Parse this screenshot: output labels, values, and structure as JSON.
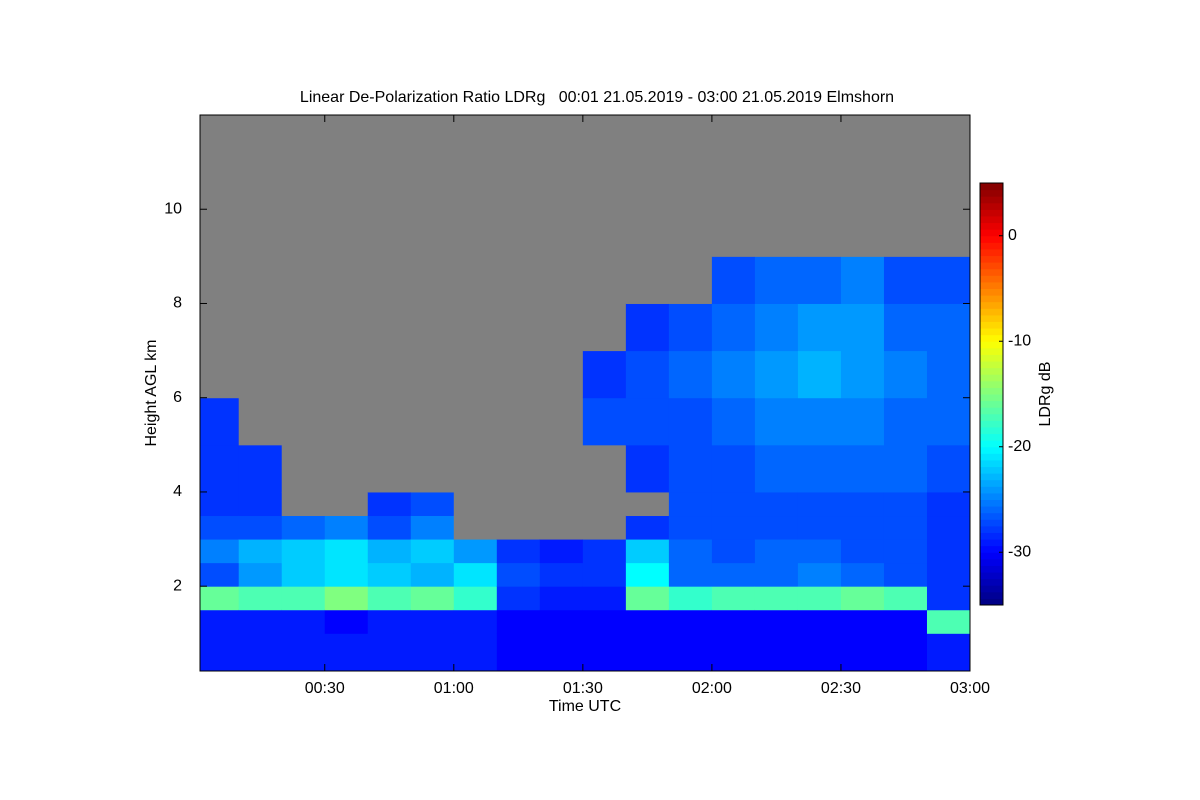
{
  "chart_data": {
    "type": "heatmap",
    "title": "Linear De-Polarization Ratio LDRg   00:01 21.05.2019 - 03:00 21.05.2019 Elmshorn",
    "x_label": "Time UTC",
    "y_label": "Height AGL km",
    "colorbar_label": "LDRg dB",
    "colormap": "jet",
    "missing_color": "#808080",
    "x_bins": [
      1,
      10,
      20,
      30,
      40,
      50,
      60,
      70,
      80,
      90,
      100,
      110,
      120,
      130,
      140,
      150,
      160,
      170,
      180
    ],
    "y_bins": [
      0.2,
      1,
      1.5,
      2,
      2.5,
      3,
      3.5,
      4,
      5,
      6,
      7,
      8,
      9,
      12
    ],
    "values": [
      [
        -29,
        -29,
        -16,
        -27,
        -25,
        -27,
        -28,
        -28,
        -28,
        null,
        null,
        null,
        null
      ],
      [
        -29,
        -29,
        -17,
        -24,
        -23,
        -27,
        -28,
        -28,
        null,
        null,
        null,
        null,
        null
      ],
      [
        -29,
        -29,
        -17,
        -22,
        -22,
        -26,
        null,
        null,
        null,
        null,
        null,
        null,
        null
      ],
      [
        -29,
        -30,
        -15,
        -21,
        -21,
        -25,
        null,
        null,
        null,
        null,
        null,
        null,
        null
      ],
      [
        -29,
        -29,
        -17,
        -22,
        -23,
        -27,
        -28,
        null,
        null,
        null,
        null,
        null,
        null
      ],
      [
        -29,
        -29,
        -16,
        -23,
        -22,
        -25,
        -27,
        null,
        null,
        null,
        null,
        null,
        null
      ],
      [
        -29,
        -29,
        -18,
        -21,
        -24,
        null,
        null,
        null,
        null,
        null,
        null,
        null,
        null
      ],
      [
        -30,
        -30,
        -28,
        -27,
        -28,
        null,
        null,
        null,
        null,
        null,
        null,
        null,
        null
      ],
      [
        -30,
        -30,
        -29,
        -28,
        -29,
        null,
        null,
        null,
        null,
        null,
        null,
        null,
        null
      ],
      [
        -30,
        -30,
        -29,
        -28,
        -28,
        null,
        null,
        null,
        -27,
        -28,
        null,
        null,
        null
      ],
      [
        -30,
        -30,
        -16,
        -20,
        -22,
        -28,
        null,
        -28,
        -27,
        -27,
        -28,
        null,
        null
      ],
      [
        -30,
        -30,
        -18,
        -26,
        -26,
        -27,
        -27,
        -27,
        -27,
        -26,
        -27,
        null,
        null
      ],
      [
        -30,
        -30,
        -17,
        -26,
        -27,
        -27,
        -27,
        -27,
        -26,
        -25,
        -26,
        -27,
        null
      ],
      [
        -30,
        -30,
        -17,
        -26,
        -26,
        -27,
        -27,
        -26,
        -25,
        -24,
        -25,
        -26,
        null
      ],
      [
        -30,
        -30,
        -17,
        -25,
        -26,
        -27,
        -27,
        -26,
        -25,
        -23,
        -24,
        -26,
        null
      ],
      [
        -30,
        -30,
        -16,
        -26,
        -27,
        -27,
        -27,
        -26,
        -25,
        -24,
        -24,
        -25,
        null
      ],
      [
        -30,
        -30,
        -17,
        -27,
        -27,
        -27,
        -27,
        -26,
        -26,
        -25,
        -26,
        -27,
        null
      ],
      [
        -29,
        -17,
        -28,
        -28,
        -28,
        -28,
        -28,
        -27,
        -26,
        -26,
        -26,
        -27,
        null
      ]
    ],
    "xlim": [
      1,
      180
    ],
    "xticks": [
      {
        "value": 30,
        "label": "00:30"
      },
      {
        "value": 60,
        "label": "01:00"
      },
      {
        "value": 90,
        "label": "01:30"
      },
      {
        "value": 120,
        "label": "02:00"
      },
      {
        "value": 150,
        "label": "02:30"
      },
      {
        "value": 180,
        "label": "03:00"
      }
    ],
    "ylim": [
      0.2,
      12
    ],
    "yticks": [
      2,
      4,
      6,
      8,
      10
    ],
    "clim": [
      -35,
      5
    ],
    "cticks": [
      -30,
      -20,
      -10,
      0
    ]
  }
}
